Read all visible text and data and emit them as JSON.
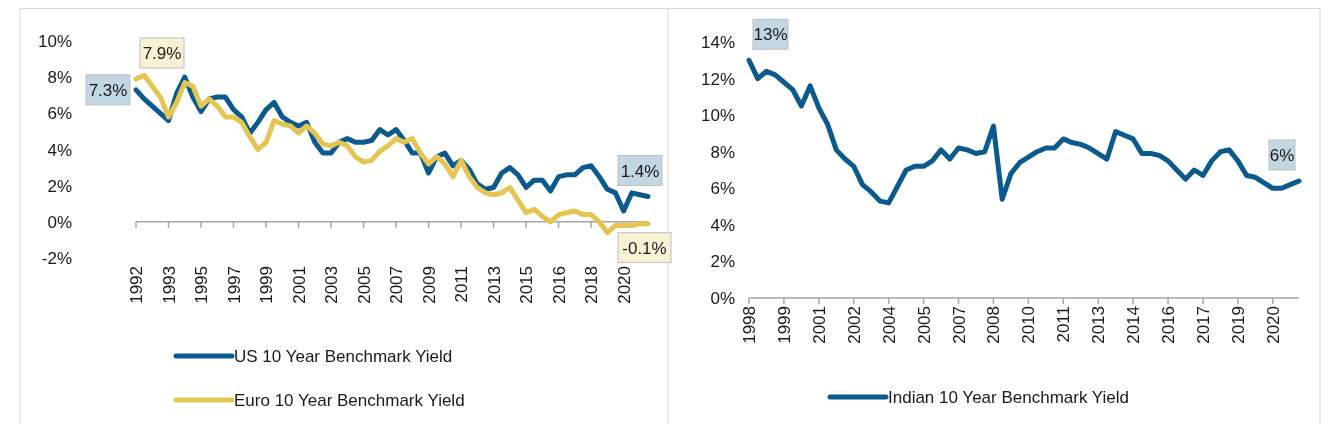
{
  "chart_data": [
    {
      "type": "line",
      "categories": [
        "1992",
        null,
        null,
        null,
        "1993",
        null,
        null,
        null,
        "1995",
        null,
        null,
        null,
        "1997",
        null,
        null,
        null,
        "1999",
        null,
        null,
        null,
        "2001",
        null,
        null,
        null,
        "2003",
        null,
        null,
        null,
        "2005",
        null,
        null,
        null,
        "2007",
        null,
        null,
        null,
        "2009",
        null,
        null,
        null,
        "2011",
        null,
        null,
        null,
        "2013",
        null,
        null,
        null,
        "2015",
        null,
        null,
        null,
        "2016",
        null,
        null,
        null,
        "2018",
        null,
        null,
        null,
        "2020",
        null,
        null,
        null
      ],
      "series": [
        {
          "name": "US 10 Year Benchmark Yield",
          "color": "#0b5a8e",
          "values": [
            7.3,
            6.8,
            6.4,
            6.0,
            5.6,
            7.1,
            8.0,
            6.9,
            6.1,
            6.8,
            6.9,
            6.9,
            6.2,
            5.8,
            4.9,
            5.5,
            6.2,
            6.6,
            5.8,
            5.5,
            5.3,
            5.5,
            4.4,
            3.8,
            3.8,
            4.4,
            4.6,
            4.4,
            4.4,
            4.5,
            5.1,
            4.8,
            5.1,
            4.5,
            3.8,
            3.8,
            2.7,
            3.6,
            3.8,
            3.1,
            3.4,
            2.9,
            2.1,
            1.8,
            1.9,
            2.7,
            3.0,
            2.6,
            1.9,
            2.3,
            2.3,
            1.7,
            2.5,
            2.6,
            2.6,
            3.0,
            3.1,
            2.5,
            1.8,
            1.6,
            0.6,
            1.6,
            1.5,
            1.4
          ],
          "value_labels": [
            "7.3%",
            null,
            null,
            null,
            null,
            null,
            null,
            null,
            null,
            null,
            null,
            null,
            null,
            null,
            null,
            null,
            null,
            null,
            null,
            null,
            null,
            null,
            null,
            null,
            null,
            null,
            null,
            null,
            null,
            null,
            null,
            null,
            null,
            null,
            null,
            null,
            null,
            null,
            null,
            null,
            null,
            null,
            null,
            null,
            null,
            null,
            null,
            null,
            null,
            null,
            null,
            null,
            null,
            null,
            null,
            null,
            null,
            null,
            null,
            null,
            null,
            null,
            null,
            "1.4%"
          ]
        },
        {
          "name": "Euro 10 Year Benchmark Yield",
          "color": "#e5c552",
          "values": [
            7.9,
            8.1,
            7.5,
            6.9,
            5.8,
            6.6,
            7.7,
            7.5,
            6.4,
            6.8,
            6.4,
            5.8,
            5.8,
            5.5,
            4.7,
            4.0,
            4.4,
            5.6,
            5.4,
            5.3,
            4.9,
            5.3,
            4.9,
            4.3,
            4.2,
            4.4,
            4.2,
            3.6,
            3.3,
            3.4,
            3.9,
            4.2,
            4.6,
            4.4,
            4.6,
            3.8,
            3.2,
            3.6,
            3.2,
            2.5,
            3.4,
            2.5,
            1.9,
            1.6,
            1.5,
            1.6,
            1.9,
            1.2,
            0.5,
            0.7,
            0.3,
            0.0,
            0.4,
            0.5,
            0.6,
            0.4,
            0.4,
            0.0,
            -0.6,
            -0.2,
            -0.2,
            -0.2,
            -0.1,
            -0.1
          ],
          "value_labels": [
            "7.9%",
            null,
            null,
            null,
            null,
            null,
            null,
            null,
            null,
            null,
            null,
            null,
            null,
            null,
            null,
            null,
            null,
            null,
            null,
            null,
            null,
            null,
            null,
            null,
            null,
            null,
            null,
            null,
            null,
            null,
            null,
            null,
            null,
            null,
            null,
            null,
            null,
            null,
            null,
            null,
            null,
            null,
            null,
            null,
            null,
            null,
            null,
            null,
            null,
            null,
            null,
            null,
            null,
            null,
            null,
            null,
            null,
            null,
            null,
            null,
            null,
            null,
            null,
            "-0.1%"
          ]
        }
      ],
      "ylim": [
        -2,
        10
      ],
      "yticks": [
        {
          "value": -2,
          "label": "-2%"
        },
        {
          "value": 0,
          "label": "0%"
        },
        {
          "value": 2,
          "label": "2%"
        },
        {
          "value": 4,
          "label": "4%"
        },
        {
          "value": 6,
          "label": "6%"
        },
        {
          "value": 8,
          "label": "8%"
        },
        {
          "value": 10,
          "label": "10%"
        }
      ],
      "legend": "bottom"
    },
    {
      "type": "line",
      "categories": [
        "1998",
        null,
        null,
        null,
        "1999",
        null,
        null,
        null,
        "2001",
        null,
        null,
        null,
        "2002",
        null,
        null,
        null,
        "2004",
        null,
        null,
        null,
        "2005",
        null,
        null,
        null,
        "2007",
        null,
        null,
        null,
        "2008",
        null,
        null,
        null,
        "2010",
        null,
        null,
        null,
        "2011",
        null,
        null,
        null,
        "2013",
        null,
        null,
        null,
        "2014",
        null,
        null,
        null,
        "2016",
        null,
        null,
        null,
        "2017",
        null,
        null,
        null,
        "2019",
        null,
        null,
        null,
        "2020",
        null,
        null,
        null
      ],
      "series": [
        {
          "name": "Indian 10 Year Benchmark Yield",
          "color": "#0b5a8e",
          "values": [
            13.0,
            12.0,
            12.4,
            12.2,
            11.8,
            11.4,
            10.5,
            11.6,
            10.4,
            9.5,
            8.1,
            7.6,
            7.2,
            6.2,
            5.8,
            5.3,
            5.2,
            6.1,
            7.0,
            7.2,
            7.2,
            7.5,
            8.1,
            7.6,
            8.2,
            8.1,
            7.9,
            8.0,
            9.4,
            5.4,
            6.8,
            7.4,
            7.7,
            8.0,
            8.2,
            8.2,
            8.7,
            8.5,
            8.4,
            8.2,
            7.9,
            7.6,
            9.1,
            8.9,
            8.7,
            7.9,
            7.9,
            7.8,
            7.5,
            7.0,
            6.5,
            7.0,
            6.7,
            7.5,
            8.0,
            8.1,
            7.5,
            6.7,
            6.6,
            6.3,
            6.0,
            6.0,
            6.2,
            6.4
          ],
          "value_labels": [
            "13%",
            null,
            null,
            null,
            null,
            null,
            null,
            null,
            null,
            null,
            null,
            null,
            null,
            null,
            null,
            null,
            null,
            null,
            null,
            null,
            null,
            null,
            null,
            null,
            null,
            null,
            null,
            null,
            null,
            null,
            null,
            null,
            null,
            null,
            null,
            null,
            null,
            null,
            null,
            null,
            null,
            null,
            null,
            null,
            null,
            null,
            null,
            null,
            null,
            null,
            null,
            null,
            null,
            null,
            null,
            null,
            null,
            null,
            null,
            null,
            null,
            null,
            null,
            "6%"
          ]
        }
      ],
      "ylim": [
        0,
        14
      ],
      "yticks": [
        {
          "value": 0,
          "label": "0%"
        },
        {
          "value": 2,
          "label": "2%"
        },
        {
          "value": 4,
          "label": "4%"
        },
        {
          "value": 6,
          "label": "6%"
        },
        {
          "value": 8,
          "label": "8%"
        },
        {
          "value": 10,
          "label": "10%"
        },
        {
          "value": 12,
          "label": "12%"
        },
        {
          "value": 14,
          "label": "14%"
        }
      ],
      "legend": "bottom"
    }
  ]
}
